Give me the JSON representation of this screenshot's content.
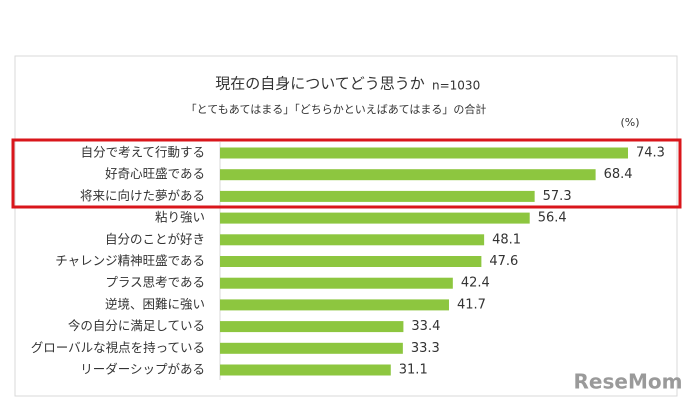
{
  "chart_data": {
    "type": "bar",
    "orientation": "horizontal",
    "title": "現在の自身についてどう思うか",
    "note": "n=1030",
    "subtitle": "「とてもあてはまる」「どちらかといえばあてはまる」の合計",
    "unit_label": "(%)",
    "categories": [
      "自分で考えて行動する",
      "好奇心旺盛である",
      "将来に向けた夢がある",
      "粘り強い",
      "自分のことが好き",
      "チャレンジ精神旺盛である",
      "プラス思考である",
      "逆境、困難に強い",
      "今の自分に満足している",
      "グローバルな視点を持っている",
      "リーダーシップがある"
    ],
    "values": [
      74.3,
      68.4,
      57.3,
      56.4,
      48.1,
      47.6,
      42.4,
      41.7,
      33.4,
      33.3,
      31.1
    ],
    "color": "#8dc63f"
  },
  "watermark": "ReseMom"
}
